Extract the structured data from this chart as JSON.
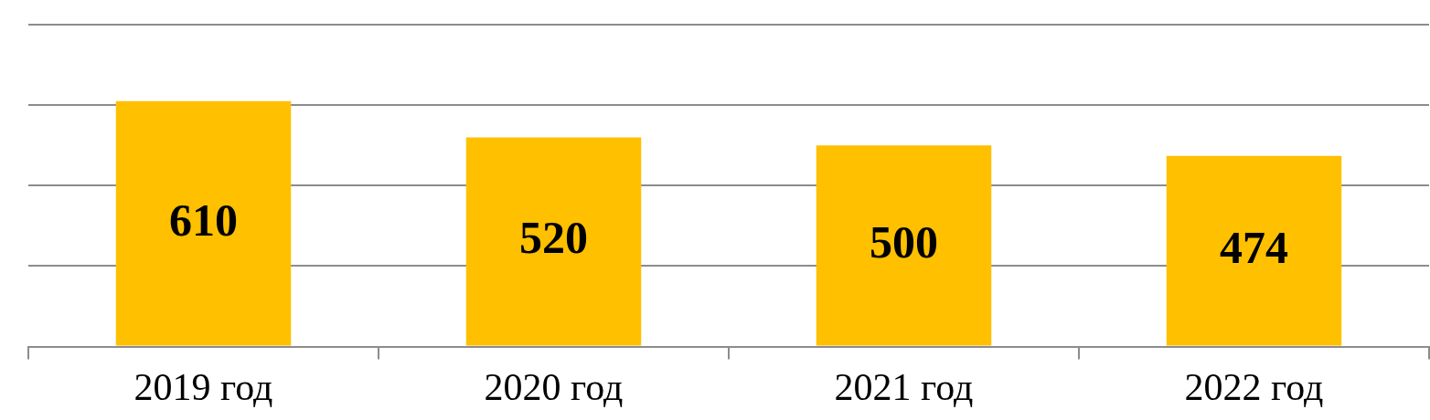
{
  "chart_data": {
    "type": "bar",
    "categories": [
      "2019 год",
      "2020 год",
      "2021 год",
      "2022 год"
    ],
    "values": [
      610,
      520,
      500,
      474
    ],
    "color": "#ffc000",
    "ylim": [
      0,
      800
    ],
    "yticks": [
      {
        "value": 0,
        "label": null
      },
      {
        "value": 200,
        "label": null
      },
      {
        "value": 400,
        "label": null
      },
      {
        "value": 600,
        "label": null
      },
      {
        "value": 800,
        "label": null
      }
    ],
    "grid": "y",
    "tick_labels": "x",
    "data_labels": true,
    "legend": false
  }
}
